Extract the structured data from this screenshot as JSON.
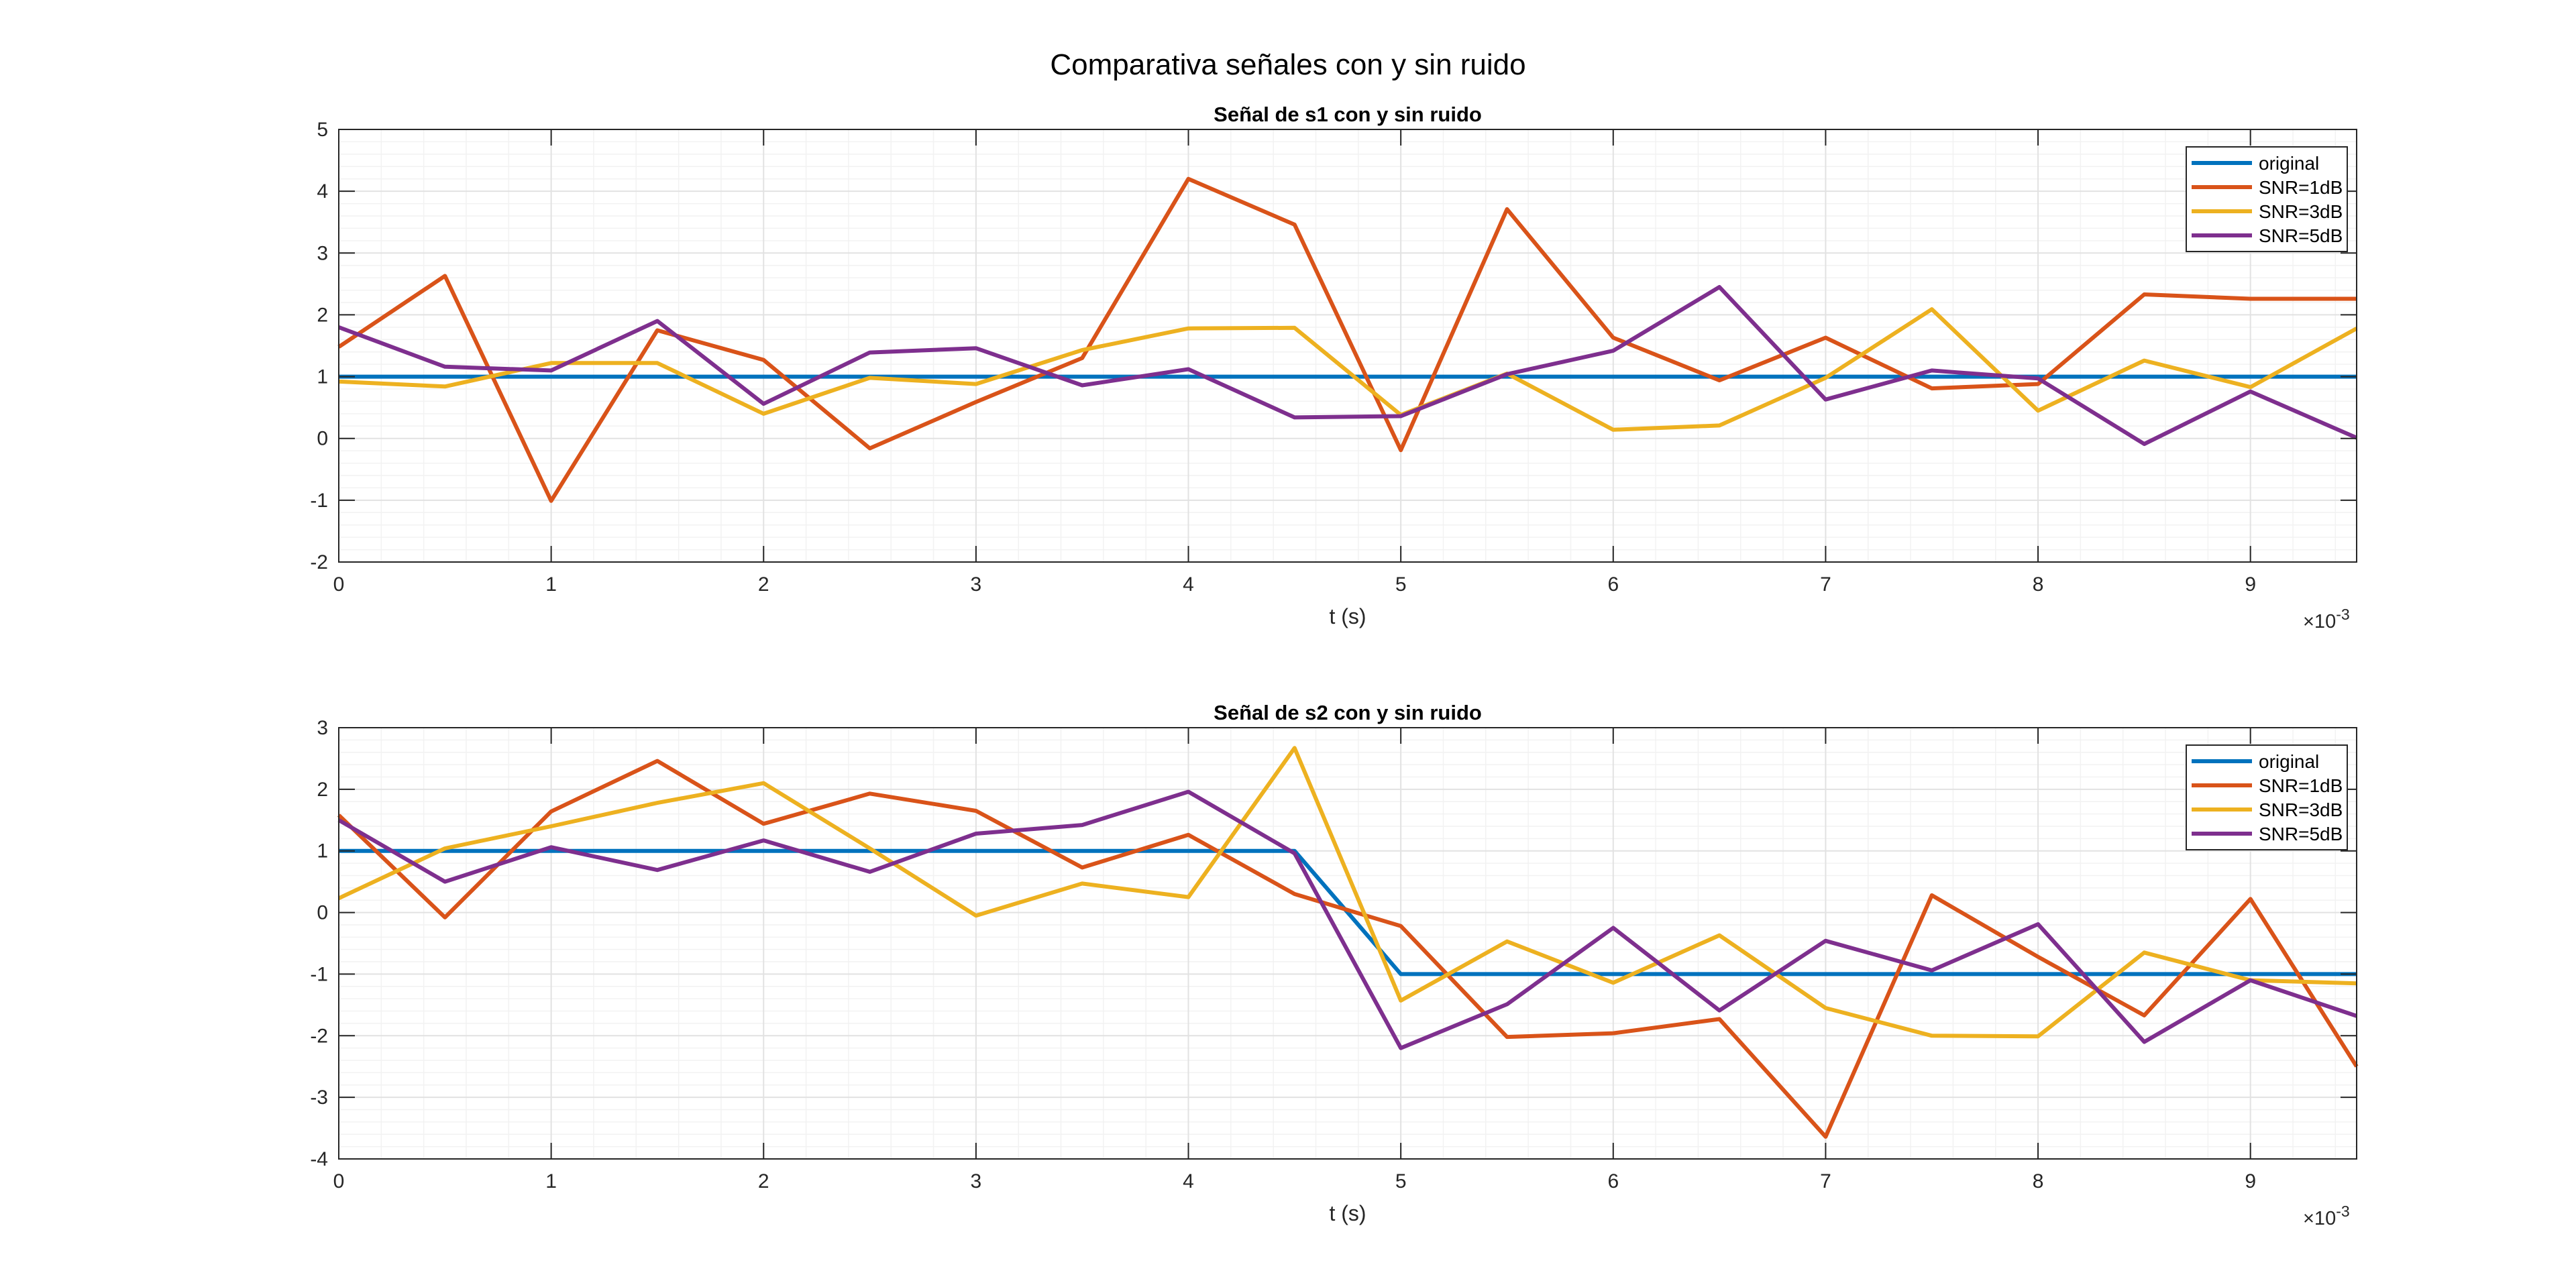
{
  "figure": {
    "title": "Comparativa señales con y sin ruido"
  },
  "chart_data": [
    {
      "type": "line",
      "title": "Señal de s1 con y sin ruido",
      "xlabel": "t (s)",
      "ylabel": "",
      "x_exponent_base": "×10",
      "x_exponent_power": "-3",
      "xlim": [
        0,
        9.5
      ],
      "ylim": [
        -2,
        5
      ],
      "xticks": [
        0,
        1,
        2,
        3,
        4,
        5,
        6,
        7,
        8,
        9
      ],
      "yticks": [
        -2,
        -1,
        0,
        1,
        2,
        3,
        4,
        5
      ],
      "grid": true,
      "minor_grid": true,
      "legend_position": "top-right",
      "x": [
        0,
        0.5,
        1,
        1.5,
        2,
        2.5,
        3,
        3.5,
        4,
        4.5,
        5,
        5.5,
        6,
        6.5,
        7,
        7.5,
        8,
        8.5,
        9,
        9.5
      ],
      "series": [
        {
          "name": "original",
          "color": "#0072BD",
          "values": [
            1,
            1,
            1,
            1,
            1,
            1,
            1,
            1,
            1,
            1,
            1,
            1,
            1,
            1,
            1,
            1,
            1,
            1,
            1,
            1
          ]
        },
        {
          "name": "SNR=1dB",
          "color": "#D95319",
          "values": [
            1.48,
            2.63,
            -1.01,
            1.75,
            1.27,
            -0.16,
            0.59,
            1.3,
            4.2,
            3.46,
            -0.19,
            3.71,
            1.63,
            0.94,
            1.63,
            0.81,
            0.88,
            2.33,
            2.26,
            2.26
          ]
        },
        {
          "name": "SNR=3dB",
          "color": "#EDB120",
          "values": [
            0.92,
            0.84,
            1.22,
            1.22,
            0.4,
            0.98,
            0.88,
            1.43,
            1.78,
            1.79,
            0.38,
            1.05,
            0.14,
            0.21,
            0.98,
            2.09,
            0.45,
            1.26,
            0.83,
            1.78
          ]
        },
        {
          "name": "SNR=5dB",
          "color": "#7E2F8E",
          "values": [
            1.8,
            1.16,
            1.1,
            1.9,
            0.56,
            1.39,
            1.46,
            0.86,
            1.12,
            0.34,
            0.36,
            1.04,
            1.42,
            2.45,
            0.63,
            1.1,
            0.97,
            -0.09,
            0.76,
            0.01
          ]
        }
      ]
    },
    {
      "type": "line",
      "title": "Señal de s2 con y sin ruido",
      "xlabel": "t (s)",
      "ylabel": "",
      "x_exponent_base": "×10",
      "x_exponent_power": "-3",
      "xlim": [
        0,
        9.5
      ],
      "ylim": [
        -4,
        3
      ],
      "xticks": [
        0,
        1,
        2,
        3,
        4,
        5,
        6,
        7,
        8,
        9
      ],
      "yticks": [
        -4,
        -3,
        -2,
        -1,
        0,
        1,
        2,
        3
      ],
      "grid": true,
      "minor_grid": true,
      "legend_position": "top-right",
      "x": [
        0,
        0.5,
        1,
        1.5,
        2,
        2.5,
        3,
        3.5,
        4,
        4.5,
        5,
        5.5,
        6,
        6.5,
        7,
        7.5,
        8,
        8.5,
        9,
        9.5
      ],
      "series": [
        {
          "name": "original",
          "color": "#0072BD",
          "values": [
            1,
            1,
            1,
            1,
            1,
            1,
            1,
            1,
            1,
            1,
            -1,
            -1,
            -1,
            -1,
            -1,
            -1,
            -1,
            -1,
            -1,
            -1
          ]
        },
        {
          "name": "SNR=1dB",
          "color": "#D95319",
          "values": [
            1.58,
            -0.08,
            1.64,
            2.46,
            1.44,
            1.93,
            1.65,
            0.73,
            1.26,
            0.3,
            -0.22,
            -2.02,
            -1.96,
            -1.73,
            -3.64,
            0.28,
            -0.72,
            -1.67,
            0.22,
            -2.5
          ]
        },
        {
          "name": "SNR=3dB",
          "color": "#EDB120",
          "values": [
            0.23,
            1.04,
            1.4,
            1.78,
            2.1,
            1.04,
            -0.05,
            0.47,
            0.25,
            2.67,
            -1.43,
            -0.47,
            -1.14,
            -0.37,
            -1.55,
            -2.0,
            -2.01,
            -0.65,
            -1.1,
            -1.15
          ]
        },
        {
          "name": "SNR=5dB",
          "color": "#7E2F8E",
          "values": [
            1.5,
            0.5,
            1.06,
            0.69,
            1.17,
            0.66,
            1.28,
            1.42,
            1.96,
            0.96,
            -2.2,
            -1.49,
            -0.25,
            -1.59,
            -0.46,
            -0.94,
            -0.19,
            -2.1,
            -1.1,
            -1.68
          ]
        }
      ]
    }
  ]
}
